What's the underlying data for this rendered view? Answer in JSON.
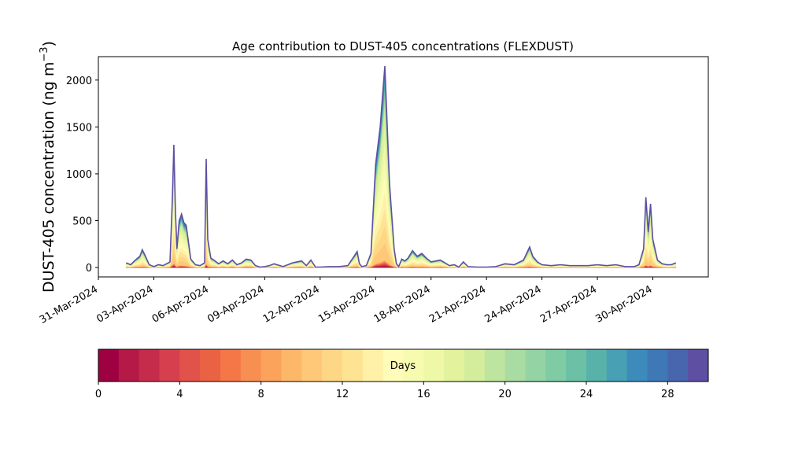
{
  "chart_data": {
    "type": "area",
    "title": "Age contribution to DUST-405 concentrations (FLEXDUST)",
    "ylabel_main": "DUST-405 concentration (ng m",
    "ylabel_sup": "−3",
    "ylabel_close": ")",
    "xlabel": "",
    "ylim": [
      -100,
      2250
    ],
    "xlim": [
      "2024-03-31",
      "2024-05-03"
    ],
    "yticks": [
      0,
      500,
      1000,
      1500,
      2000
    ],
    "xticks": [
      "31-Mar-2024",
      "03-Apr-2024",
      "06-Apr-2024",
      "09-Apr-2024",
      "12-Apr-2024",
      "15-Apr-2024",
      "18-Apr-2024",
      "21-Apr-2024",
      "24-Apr-2024",
      "27-Apr-2024",
      "30-Apr-2024"
    ],
    "grid": false,
    "stacked_by": "Days",
    "total_series": {
      "x": [
        "2024-04-01T12:00",
        "2024-04-01T18:00",
        "2024-04-02T00:00",
        "2024-04-02T06:00",
        "2024-04-02T09:00",
        "2024-04-02T12:00",
        "2024-04-02T18:00",
        "2024-04-03T00:00",
        "2024-04-03T06:00",
        "2024-04-03T12:00",
        "2024-04-03T21:00",
        "2024-04-04T00:00",
        "2024-04-04T02:00",
        "2024-04-04T04:00",
        "2024-04-04T06:00",
        "2024-04-04T09:00",
        "2024-04-04T12:00",
        "2024-04-04T15:00",
        "2024-04-04T18:00",
        "2024-04-05T00:00",
        "2024-04-05T06:00",
        "2024-04-05T12:00",
        "2024-04-05T18:00",
        "2024-04-05T20:00",
        "2024-04-05T22:00",
        "2024-04-06T02:00",
        "2024-04-06T06:00",
        "2024-04-06T12:00",
        "2024-04-06T18:00",
        "2024-04-07T00:00",
        "2024-04-07T06:00",
        "2024-04-07T12:00",
        "2024-04-07T18:00",
        "2024-04-08T00:00",
        "2024-04-08T06:00",
        "2024-04-08T12:00",
        "2024-04-08T18:00",
        "2024-04-09T00:00",
        "2024-04-09T06:00",
        "2024-04-09T12:00",
        "2024-04-10T00:00",
        "2024-04-10T12:00",
        "2024-04-11T00:00",
        "2024-04-11T06:00",
        "2024-04-11T12:00",
        "2024-04-11T18:00",
        "2024-04-12T00:00",
        "2024-04-12T12:00",
        "2024-04-13T00:00",
        "2024-04-13T12:00",
        "2024-04-13T20:00",
        "2024-04-14T00:00",
        "2024-04-14T03:00",
        "2024-04-14T06:00",
        "2024-04-14T12:00",
        "2024-04-14T18:00",
        "2024-04-15T00:00",
        "2024-04-15T06:00",
        "2024-04-15T12:00",
        "2024-04-15T18:00",
        "2024-04-16T00:00",
        "2024-04-16T03:00",
        "2024-04-16T06:00",
        "2024-04-16T10:00",
        "2024-04-16T14:00",
        "2024-04-16T18:00",
        "2024-04-17T00:00",
        "2024-04-17T06:00",
        "2024-04-17T12:00",
        "2024-04-17T18:00",
        "2024-04-18T00:00",
        "2024-04-18T12:00",
        "2024-04-19T00:00",
        "2024-04-19T06:00",
        "2024-04-19T12:00",
        "2024-04-19T18:00",
        "2024-04-20T00:00",
        "2024-04-20T12:00",
        "2024-04-21T00:00",
        "2024-04-21T12:00",
        "2024-04-22T00:00",
        "2024-04-22T12:00",
        "2024-04-23T00:00",
        "2024-04-23T08:00",
        "2024-04-23T12:00",
        "2024-04-23T18:00",
        "2024-04-24T00:00",
        "2024-04-24T12:00",
        "2024-04-25T00:00",
        "2024-04-25T12:00",
        "2024-04-26T00:00",
        "2024-04-26T12:00",
        "2024-04-27T00:00",
        "2024-04-27T12:00",
        "2024-04-28T00:00",
        "2024-04-28T12:00",
        "2024-04-29T00:00",
        "2024-04-29T06:00",
        "2024-04-29T12:00",
        "2024-04-29T15:00",
        "2024-04-29T18:00",
        "2024-04-29T21:00",
        "2024-04-30T00:00",
        "2024-04-30T06:00",
        "2024-04-30T12:00",
        "2024-04-30T18:00",
        "2024-05-01T00:00",
        "2024-05-01T06:00"
      ],
      "values": [
        50,
        30,
        80,
        120,
        190,
        140,
        30,
        10,
        30,
        20,
        60,
        700,
        1310,
        600,
        200,
        500,
        570,
        480,
        450,
        90,
        30,
        20,
        50,
        1160,
        300,
        100,
        80,
        40,
        70,
        40,
        80,
        30,
        50,
        90,
        80,
        20,
        5,
        10,
        20,
        40,
        10,
        50,
        70,
        20,
        80,
        5,
        5,
        10,
        10,
        20,
        120,
        170,
        40,
        10,
        20,
        150,
        1100,
        1500,
        2150,
        900,
        200,
        40,
        10,
        90,
        70,
        100,
        180,
        120,
        150,
        100,
        60,
        80,
        20,
        30,
        5,
        60,
        10,
        5,
        5,
        10,
        40,
        30,
        80,
        220,
        120,
        60,
        30,
        20,
        30,
        20,
        20,
        20,
        30,
        20,
        30,
        10,
        10,
        30,
        200,
        750,
        380,
        680,
        300,
        80,
        40,
        30,
        30,
        50
      ]
    },
    "colorbar": {
      "label": "Days",
      "range": [
        0,
        30
      ],
      "ticks": [
        0,
        4,
        8,
        12,
        16,
        20,
        24,
        28
      ],
      "levels": 30,
      "colormap": "Spectral",
      "colors": [
        "#9e0142",
        "#b41947",
        "#c52b4a",
        "#d6404e",
        "#e1524a",
        "#ea6244",
        "#f57748",
        "#f88f52",
        "#fba25b",
        "#fdb768",
        "#fec878",
        "#fed786",
        "#fee393",
        "#fff1a8",
        "#fffbb8",
        "#f6fbb0",
        "#eff8a6",
        "#e2f29d",
        "#d3ed9c",
        "#bde5a0",
        "#a8dca2",
        "#94d3a4",
        "#7fcba4",
        "#6bc0a5",
        "#58b2aa",
        "#47a0b3",
        "#3c8bbb",
        "#3e78b5",
        "#4866ae",
        "#5e4fa2"
      ]
    }
  }
}
